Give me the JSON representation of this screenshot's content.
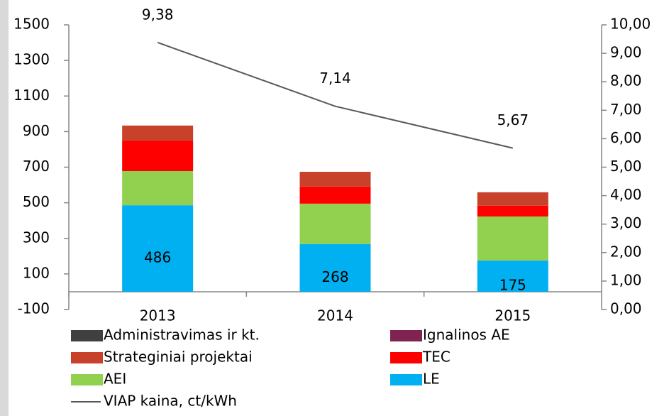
{
  "chart_data": {
    "type": "bar",
    "stacked": true,
    "categories": [
      "2013",
      "2014",
      "2015"
    ],
    "series": [
      {
        "name": "Administravimas ir kt.",
        "color": "#404040",
        "values": [
          0,
          0,
          0
        ]
      },
      {
        "name": "Ignalinos AE",
        "color": "#7f2450",
        "values": [
          0,
          0,
          0
        ]
      },
      {
        "name": "Strateginiai projektai",
        "color": "#c8412a",
        "values": [
          84,
          83,
          76
        ]
      },
      {
        "name": "TEC",
        "color": "#ff0000",
        "values": [
          172,
          96,
          60
        ]
      },
      {
        "name": "AEI",
        "color": "#92d050",
        "values": [
          192,
          227,
          248
        ]
      },
      {
        "name": "LE",
        "color": "#00b0f0",
        "values": [
          486,
          268,
          175
        ],
        "show_labels": true
      },
      {
        "name": "VIAP kaina, ct/kWh",
        "type": "line",
        "axis": "y2",
        "color": "#595959",
        "values": [
          9.38,
          7.14,
          5.67
        ],
        "value_labels": [
          "9,38",
          "7,14",
          "5,67"
        ]
      }
    ],
    "ylim": [
      -100,
      1500
    ],
    "yticks": [
      -100,
      100,
      300,
      500,
      700,
      900,
      1100,
      1300,
      1500
    ],
    "y2lim": [
      0,
      10
    ],
    "y2ticks": [
      {
        "value": 0,
        "label": "0,00"
      },
      {
        "value": 1,
        "label": "1,00"
      },
      {
        "value": 2,
        "label": "2,00"
      },
      {
        "value": 3,
        "label": "3,00"
      },
      {
        "value": 4,
        "label": "4,00"
      },
      {
        "value": 5,
        "label": "5,00"
      },
      {
        "value": 6,
        "label": "6,00"
      },
      {
        "value": 7,
        "label": "7,00"
      },
      {
        "value": 8,
        "label": "8,00"
      },
      {
        "value": 9,
        "label": "9,00"
      },
      {
        "value": 10,
        "label": "10,00"
      }
    ],
    "legend": "bottom"
  }
}
